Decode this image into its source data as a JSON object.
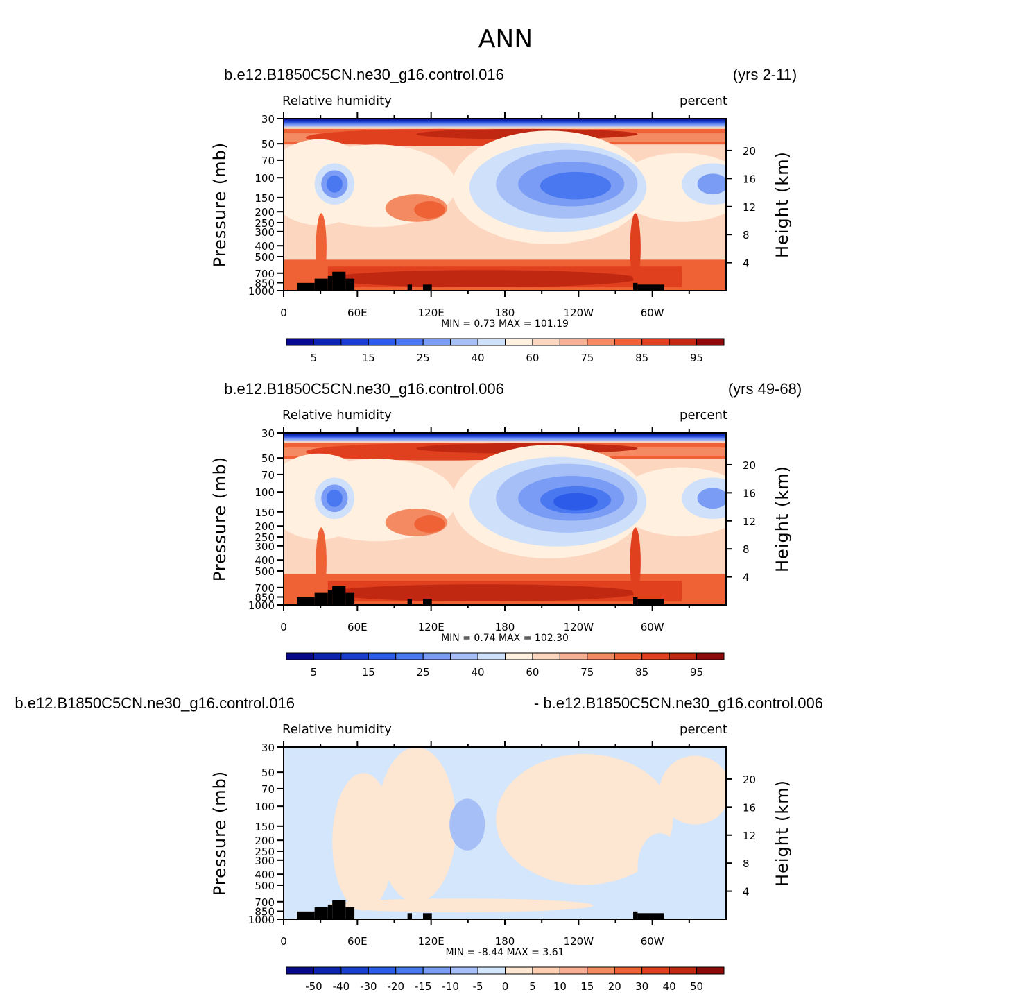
{
  "figure_title": "ANN",
  "colors": {
    "abs_palette": [
      "#08088c",
      "#0d24b0",
      "#1a3fd0",
      "#2b5be8",
      "#4a78f0",
      "#7a9cf4",
      "#a6bff7",
      "#cfe0fb",
      "#fff0e0",
      "#fdd6c0",
      "#f7b096",
      "#f48a62",
      "#ee6236",
      "#e0401e",
      "#c02812",
      "#8e0a0a"
    ],
    "diff_palette": [
      "#08088c",
      "#0d24b0",
      "#1a3fd0",
      "#2b5be8",
      "#4a78f0",
      "#7a9cf4",
      "#a6bff7",
      "#d4e6fb",
      "#fde6d2",
      "#fdd0b4",
      "#f7b096",
      "#f48a62",
      "#ee6236",
      "#e0401e",
      "#c02812",
      "#8e0a0a"
    ],
    "topography": "#000000"
  },
  "panels": [
    {
      "case_left": "b.e12.B1850C5CN.ne30_g16.control.016",
      "case_right": "(yrs 2-11)",
      "variable": "Relative humidity",
      "units": "percent",
      "stats": "MIN =    0.73   MAX =  101.19",
      "cbar_labels": [
        "5",
        "15",
        "25",
        "40",
        "60",
        "75",
        "85",
        "95"
      ]
    },
    {
      "case_left": "b.e12.B1850C5CN.ne30_g16.control.006",
      "case_right": "(yrs 49-68)",
      "variable": "Relative humidity",
      "units": "percent",
      "stats": "MIN =    0.74   MAX =  102.30",
      "cbar_labels": [
        "5",
        "15",
        "25",
        "40",
        "60",
        "75",
        "85",
        "95"
      ]
    },
    {
      "case_left": "b.e12.B1850C5CN.ne30_g16.control.016",
      "case_right": "- b.e12.B1850C5CN.ne30_g16.control.006",
      "variable": "Relative humidity",
      "units": "percent",
      "stats": "MIN =   -8.44   MAX =     3.61",
      "cbar_labels": [
        "-50",
        "-40",
        "-30",
        "-20",
        "-15",
        "-10",
        "-5",
        "0",
        "5",
        "10",
        "15",
        "20",
        "30",
        "40",
        "50"
      ]
    }
  ],
  "axes": {
    "ylabel_left": "Pressure  (mb)",
    "ylabel_right": "Height  (km)",
    "x_ticklabels": [
      "0",
      "60E",
      "120E",
      "180",
      "120W",
      "60W"
    ],
    "y_ticklabels_left": [
      "30",
      "50",
      "70",
      "100",
      "150",
      "200",
      "250",
      "300",
      "400",
      "500",
      "700",
      "850",
      "1000"
    ],
    "y_ticklabels_right": [
      "20",
      "16",
      "12",
      "8",
      "4"
    ]
  },
  "chart_data": [
    {
      "type": "heatmap",
      "title": "ANN",
      "subtitle": "b.e12.B1850C5CN.ne30_g16.control.016 (yrs 2-11)",
      "variable": "Relative humidity",
      "units": "percent",
      "xlabel": "",
      "ylabel": "Pressure (mb)",
      "ylabel_right": "Height (km)",
      "xlim": [
        0,
        360
      ],
      "ylim": [
        1000,
        30
      ],
      "y_scale": "log",
      "x_ticks": [
        "0",
        "60E",
        "120E",
        "180",
        "120W",
        "60W"
      ],
      "contour_levels": [
        5,
        10,
        15,
        20,
        25,
        30,
        40,
        50,
        60,
        70,
        75,
        80,
        85,
        90,
        95
      ],
      "min": 0.73,
      "max": 101.19
    },
    {
      "type": "heatmap",
      "title": "ANN",
      "subtitle": "b.e12.B1850C5CN.ne30_g16.control.006 (yrs 49-68)",
      "variable": "Relative humidity",
      "units": "percent",
      "xlabel": "",
      "ylabel": "Pressure (mb)",
      "ylabel_right": "Height (km)",
      "xlim": [
        0,
        360
      ],
      "ylim": [
        1000,
        30
      ],
      "y_scale": "log",
      "x_ticks": [
        "0",
        "60E",
        "120E",
        "180",
        "120W",
        "60W"
      ],
      "contour_levels": [
        5,
        10,
        15,
        20,
        25,
        30,
        40,
        50,
        60,
        70,
        75,
        80,
        85,
        90,
        95
      ],
      "min": 0.74,
      "max": 102.3
    },
    {
      "type": "heatmap",
      "title": "ANN",
      "subtitle": "b.e12.B1850C5CN.ne30_g16.control.016 - b.e12.B1850C5CN.ne30_g16.control.006",
      "variable": "Relative humidity",
      "units": "percent",
      "xlabel": "",
      "ylabel": "Pressure (mb)",
      "ylabel_right": "Height (km)",
      "xlim": [
        0,
        360
      ],
      "ylim": [
        1000,
        30
      ],
      "y_scale": "log",
      "x_ticks": [
        "0",
        "60E",
        "120E",
        "180",
        "120W",
        "60W"
      ],
      "contour_levels": [
        -50,
        -40,
        -30,
        -20,
        -15,
        -10,
        -5,
        0,
        5,
        10,
        15,
        20,
        30,
        40,
        50
      ],
      "min": -8.44,
      "max": 3.61
    }
  ]
}
